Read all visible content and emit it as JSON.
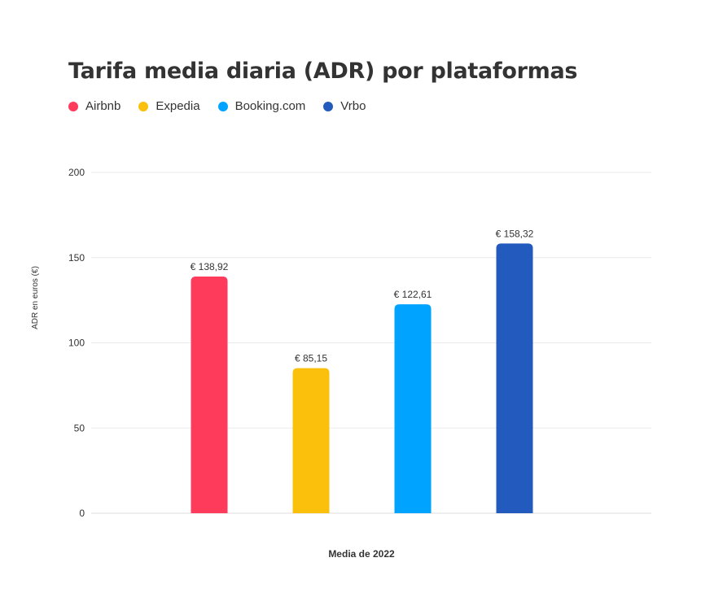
{
  "chart_data": {
    "type": "bar",
    "title": "Tarifa media diaria (ADR) por plataformas",
    "xlabel": "Media de 2022",
    "ylabel": "ADR en euros (€)",
    "ylim": [
      0,
      200
    ],
    "yticks": [
      "0",
      "50",
      "100",
      "150",
      "200"
    ],
    "ytick_values": [
      0,
      50,
      100,
      150,
      200
    ],
    "grid": true,
    "legend_position": "top-left",
    "series": [
      {
        "name": "Airbnb",
        "values": [
          138.92
        ],
        "label": "€ 138,92",
        "color": "#FF3B5C"
      },
      {
        "name": "Expedia",
        "values": [
          85.15
        ],
        "label": "€ 85,15",
        "color": "#FBC00C"
      },
      {
        "name": "Booking.com",
        "values": [
          122.61
        ],
        "label": "€ 122,61",
        "color": "#00A3FF"
      },
      {
        "name": "Vrbo",
        "values": [
          158.32
        ],
        "label": "€ 158,32",
        "color": "#225BBD"
      }
    ]
  }
}
